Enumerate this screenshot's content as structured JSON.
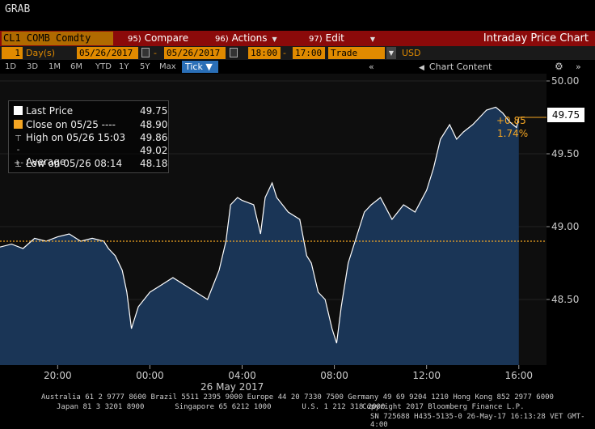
{
  "header": {
    "title": "GRAB"
  },
  "menu": {
    "ticker": "CL1 COMB Comdty",
    "compare_num": "95)",
    "compare_label": "Compare",
    "actions_num": "96)",
    "actions_label": "Actions",
    "edit_num": "97)",
    "edit_label": "Edit",
    "chart_title": "Intraday Price Chart"
  },
  "controls": {
    "period_value": "1",
    "period_unit": "Day(s)",
    "start_date": "05/26/2017",
    "dash": "-",
    "end_date": "05/26/2017",
    "start_time": "18:00",
    "end_time": "17:00",
    "event": "Trade",
    "currency": "USD"
  },
  "timeframes": [
    "1D",
    "3D",
    "1M",
    "6M",
    "YTD",
    "1Y",
    "5Y",
    "Max"
  ],
  "tick_label": "Tick ▼",
  "toolbar": {
    "nav_left": "«",
    "chart_content": "Chart Content",
    "nav_right": "»"
  },
  "legend": [
    {
      "label": "Last Price",
      "value": "49.75",
      "color": "#ffffff",
      "symbol": "box"
    },
    {
      "label": "Close on 05/25 ----",
      "value": "48.90",
      "color": "#f5a623",
      "symbol": "box"
    },
    {
      "label": "High on 05/26 15:03",
      "value": "49.86",
      "color": "#cccccc",
      "symbol": "T"
    },
    {
      "label": "Average",
      "value": "49.02",
      "color": "#cccccc",
      "symbol": "-+-"
    },
    {
      "label": "Low on 05/26 08:14",
      "value": "48.18",
      "color": "#cccccc",
      "symbol": "⊥"
    }
  ],
  "last_price_box": "49.75",
  "change_abs": "+0.85",
  "change_pct": "1.74%",
  "date_label": "26 May 2017",
  "footer": {
    "line1": "Australia 61 2 9777 8600 Brazil 5511 2395 9000 Europe 44 20 7330 7500 Germany 49 69 9204 1210 Hong Kong 852 2977 6000",
    "line2": "Japan 81 3 3201 8900       Singapore 65 6212 1000       U.S. 1 212 318 2000",
    "line3": "Copyright 2017 Bloomberg Finance L.P.",
    "line4": "SN 725688 H435-5135-0 26-May-17 16:13:28 VET  GMT-4:00"
  },
  "chart_data": {
    "type": "area",
    "series": [
      {
        "name": "Last Price",
        "color": "#ffffff",
        "fill": "#1a3556"
      }
    ],
    "reference_line": {
      "name": "Close on 05/25",
      "value": 48.9,
      "color": "#f5a623"
    },
    "x_ticks": [
      "20:00",
      "00:00",
      "04:00",
      "08:00",
      "12:00",
      "16:00"
    ],
    "x_tick_hours": [
      20,
      24,
      28,
      32,
      36,
      40
    ],
    "xlim": [
      17.5,
      41.2
    ],
    "y_ticks": [
      "50.00",
      "49.50",
      "49.00",
      "48.50"
    ],
    "y_tick_values": [
      50.0,
      49.5,
      49.0,
      48.5
    ],
    "ylim": [
      48.05,
      50.05
    ],
    "x": [
      17.5,
      18.0,
      18.5,
      19.0,
      19.5,
      20.0,
      20.5,
      21.0,
      21.5,
      22.0,
      22.2,
      22.5,
      22.8,
      23.0,
      23.2,
      23.5,
      24.0,
      24.5,
      25.0,
      25.5,
      26.0,
      26.5,
      27.0,
      27.3,
      27.5,
      27.8,
      28.0,
      28.5,
      28.8,
      29.0,
      29.3,
      29.5,
      30.0,
      30.5,
      30.8,
      31.0,
      31.3,
      31.6,
      31.9,
      32.1,
      32.3,
      32.6,
      33.0,
      33.3,
      33.6,
      34.0,
      34.5,
      35.0,
      35.5,
      36.0,
      36.3,
      36.6,
      37.0,
      37.3,
      37.6,
      38.0,
      38.3,
      38.6,
      39.0,
      39.3,
      39.6,
      39.9,
      40.0
    ],
    "y": [
      48.86,
      48.88,
      48.85,
      48.92,
      48.9,
      48.93,
      48.95,
      48.9,
      48.92,
      48.9,
      48.85,
      48.8,
      48.7,
      48.55,
      48.3,
      48.45,
      48.55,
      48.6,
      48.65,
      48.6,
      48.55,
      48.5,
      48.7,
      48.9,
      49.15,
      49.2,
      49.18,
      49.15,
      48.95,
      49.2,
      49.3,
      49.2,
      49.1,
      49.05,
      48.8,
      48.75,
      48.55,
      48.5,
      48.3,
      48.2,
      48.45,
      48.75,
      48.95,
      49.1,
      49.15,
      49.2,
      49.05,
      49.15,
      49.1,
      49.25,
      49.4,
      49.6,
      49.7,
      49.6,
      49.65,
      49.7,
      49.75,
      49.8,
      49.82,
      49.78,
      49.72,
      49.68,
      49.75
    ]
  }
}
